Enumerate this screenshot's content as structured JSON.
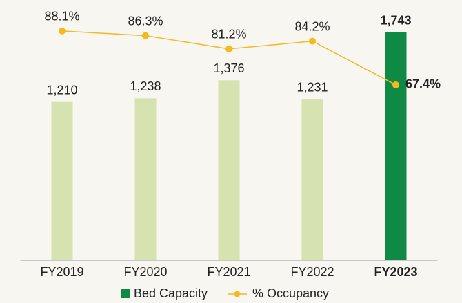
{
  "chart_data": {
    "type": "bar-line",
    "categories": [
      "FY2019",
      "FY2020",
      "FY2021",
      "FY2022",
      "FY2023"
    ],
    "highlight": "FY2023",
    "series": [
      {
        "name": "Bed Capacity",
        "type": "bar",
        "color": "#0e8a45",
        "colors": [
          "#d6e3b0",
          "#d6e3b0",
          "#d6e3b0",
          "#d6e3b0",
          "#0e8a45"
        ],
        "values": [
          1210,
          1238,
          1376,
          1231,
          1743
        ],
        "value_labels": [
          "1,210",
          "1,238",
          "1,376",
          "1,231",
          "1,743"
        ]
      },
      {
        "name": "% Occupancy",
        "type": "line",
        "axis": "y2",
        "color": "#f5b821",
        "values": [
          88.1,
          86.3,
          81.2,
          84.2,
          67.4
        ],
        "value_labels": [
          "88.1%",
          "86.3%",
          "81.2%",
          "84.2%",
          "67.4%"
        ]
      }
    ],
    "ylim": [
      0,
      1900
    ],
    "y2lim": [
      0,
      95.5
    ],
    "legend": "bottom"
  }
}
